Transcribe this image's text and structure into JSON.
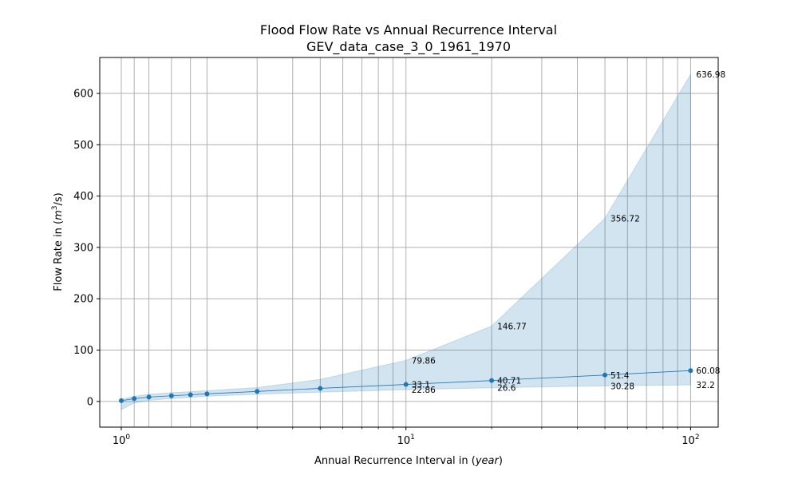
{
  "chart_data": {
    "type": "line",
    "title": "Flood Flow Rate vs Annual Recurrence Interval",
    "subtitle": "GEV_data_case_3_0_1961_1970",
    "xlabel_prefix": "Annual Recurrence Interval in (",
    "xlabel_unit": "year",
    "xlabel_suffix": ")",
    "ylabel_prefix": "Flow Rate in (",
    "ylabel_unit_base": "m",
    "ylabel_unit_exp": "3",
    "ylabel_unit_rest": "/s)",
    "xscale": "log",
    "xlim": [
      0.84,
      125
    ],
    "ylim": [
      -50,
      670
    ],
    "grid": true,
    "colors": {
      "line": "#1f77b4",
      "band": "#1f77b4",
      "grid": "#b0b0b0"
    },
    "y_ticks": [
      {
        "value": 0,
        "label": "0"
      },
      {
        "value": 100,
        "label": "100"
      },
      {
        "value": 200,
        "label": "200"
      },
      {
        "value": 300,
        "label": "300"
      },
      {
        "value": 400,
        "label": "400"
      },
      {
        "value": 500,
        "label": "500"
      },
      {
        "value": 600,
        "label": "600"
      }
    ],
    "x_ticks": [
      {
        "value": 1,
        "base": "10",
        "exp": "0"
      },
      {
        "value": 10,
        "base": "10",
        "exp": "1"
      },
      {
        "value": 100,
        "base": "10",
        "exp": "2"
      }
    ],
    "x_minor_ticks": [
      2,
      3,
      4,
      5,
      6,
      7,
      8,
      9,
      20,
      30,
      40,
      50,
      60,
      70,
      80,
      90
    ],
    "x_extra_gridlines": [
      1.11,
      1.25,
      1.5,
      1.75,
      2,
      3,
      5,
      10,
      20,
      50,
      100
    ],
    "series": [
      {
        "x": [
          1.0,
          1.11,
          1.25,
          1.5,
          1.75,
          2,
          3,
          5,
          10,
          20,
          50,
          100
        ],
        "y": [
          1.5,
          5.5,
          8.5,
          11.0,
          13.0,
          14.8,
          19.5,
          25.5,
          33.1,
          40.71,
          51.4,
          60.08
        ],
        "lower": [
          -16,
          -3,
          2,
          5.5,
          8,
          10,
          14,
          18,
          22.86,
          26.6,
          30.28,
          32.2
        ],
        "upper": [
          4,
          10,
          14,
          17,
          19,
          21,
          27,
          43,
          79.86,
          146.77,
          356.72,
          636.98
        ]
      }
    ],
    "annotations": [
      {
        "x": 10,
        "y": 79.86,
        "text": "79.86"
      },
      {
        "x": 10,
        "y": 33.1,
        "text": "33.1"
      },
      {
        "x": 10,
        "y": 22.86,
        "text": "22.86"
      },
      {
        "x": 20,
        "y": 146.77,
        "text": "146.77"
      },
      {
        "x": 20,
        "y": 40.71,
        "text": "40.71"
      },
      {
        "x": 20,
        "y": 26.6,
        "text": "26.6"
      },
      {
        "x": 50,
        "y": 356.72,
        "text": "356.72"
      },
      {
        "x": 50,
        "y": 51.4,
        "text": "51.4"
      },
      {
        "x": 50,
        "y": 30.28,
        "text": "30.28"
      },
      {
        "x": 100,
        "y": 636.98,
        "text": "636.98"
      },
      {
        "x": 100,
        "y": 60.08,
        "text": "60.08"
      },
      {
        "x": 100,
        "y": 32.2,
        "text": "32.2"
      }
    ]
  }
}
